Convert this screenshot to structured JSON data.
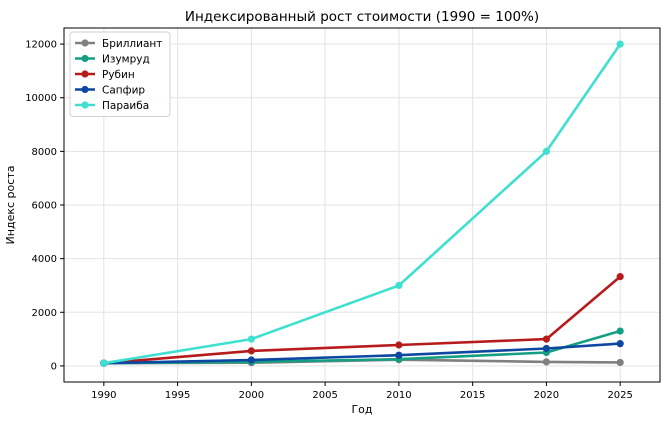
{
  "chart_data": {
    "type": "line",
    "title": "Индексированный рост стоимости (1990 = 100%)",
    "xlabel": "Год",
    "ylabel": "Индекс роста",
    "xlim": [
      1987.3,
      2027.7
    ],
    "ylim": [
      -600,
      12600
    ],
    "xticks": [
      1990,
      1995,
      2000,
      2005,
      2010,
      2015,
      2020,
      2025
    ],
    "yticks": [
      0,
      2000,
      4000,
      6000,
      8000,
      10000,
      12000
    ],
    "grid": true,
    "legend_position": "top-left",
    "x": [
      1990,
      2000,
      2010,
      2020,
      2025
    ],
    "series": [
      {
        "name": "Бриллиант",
        "color": "#808080",
        "values": [
          100,
          120,
          230,
          150,
          130
        ]
      },
      {
        "name": "Изумруд",
        "color": "#169e83",
        "values": [
          100,
          150,
          250,
          500,
          1300
        ]
      },
      {
        "name": "Рубин",
        "color": "#b71c1c",
        "values": [
          100,
          560,
          780,
          1000,
          3330
        ]
      },
      {
        "name": "Сапфир",
        "color": "#0d47a1",
        "values": [
          100,
          220,
          400,
          650,
          830
        ]
      },
      {
        "name": "Параиба",
        "color": "#40e0d0",
        "values": [
          100,
          1000,
          3000,
          8000,
          12000
        ]
      }
    ]
  }
}
